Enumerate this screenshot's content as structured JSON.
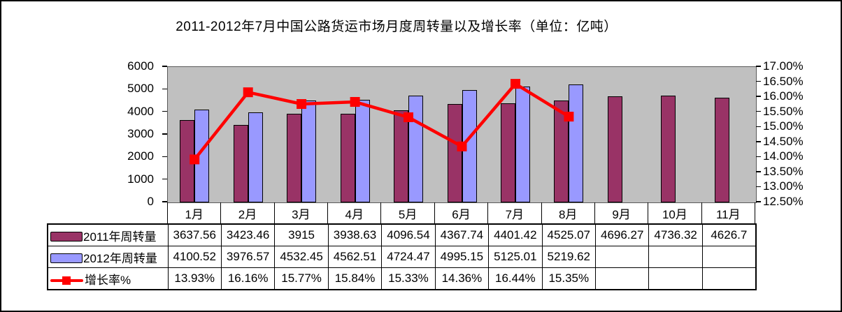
{
  "title": "2011-2012年7月中国公路货运市场月度周转量以及增长率（单位：亿吨）",
  "colors": {
    "bar_2011": "#993366",
    "bar_2012": "#9999FF",
    "growth_line": "#FF0000",
    "plot_background": "#C0C0C0",
    "text": "#000000"
  },
  "chart_data": {
    "type": "bar+line",
    "title": "2011-2012年7月中国公路货运市场月度周转量以及增长率（单位：亿吨）",
    "categories": [
      "1月",
      "2月",
      "3月",
      "4月",
      "5月",
      "6月",
      "7月",
      "8月",
      "9月",
      "10月",
      "11月"
    ],
    "series": [
      {
        "name": "2011年周转量",
        "type": "bar",
        "axis": "left",
        "color": "#993366",
        "values": [
          3637.56,
          3423.46,
          3915,
          3938.63,
          4096.54,
          4367.74,
          4401.42,
          4525.07,
          4696.27,
          4736.32,
          4626.7
        ]
      },
      {
        "name": "2012年周转量",
        "type": "bar",
        "axis": "left",
        "color": "#9999FF",
        "values": [
          4100.52,
          3976.57,
          4532.45,
          4562.51,
          4724.47,
          4995.15,
          5125.01,
          5219.62,
          null,
          null,
          null
        ]
      },
      {
        "name": "增长率%",
        "type": "line",
        "axis": "right",
        "color": "#FF0000",
        "values": [
          13.93,
          16.16,
          15.77,
          15.84,
          15.33,
          14.36,
          16.44,
          15.35,
          null,
          null,
          null
        ]
      }
    ],
    "left_axis": {
      "min": 0,
      "max": 6000,
      "step": 1000,
      "ticks": [
        "6000",
        "5000",
        "4000",
        "3000",
        "2000",
        "1000",
        "0"
      ]
    },
    "right_axis": {
      "min": 12.5,
      "max": 17,
      "step": 0.5,
      "ticks": [
        "17.00%",
        "16.50%",
        "16.00%",
        "15.50%",
        "15.00%",
        "14.50%",
        "14.00%",
        "13.50%",
        "13.00%",
        "12.50%"
      ]
    },
    "grid": false,
    "legend_position": "table-left"
  },
  "table": {
    "rows": [
      {
        "label": "2011年周转量",
        "swatch": "bar",
        "cells": [
          "3637.56",
          "3423.46",
          "3915",
          "3938.63",
          "4096.54",
          "4367.74",
          "4401.42",
          "4525.07",
          "4696.27",
          "4736.32",
          "4626.7"
        ]
      },
      {
        "label": "2012年周转量",
        "swatch": "bar",
        "cells": [
          "4100.52",
          "3976.57",
          "4532.45",
          "4562.51",
          "4724.47",
          "4995.15",
          "5125.01",
          "5219.62",
          "",
          "",
          ""
        ]
      },
      {
        "label": "增长率%",
        "swatch": "line",
        "cells": [
          "13.93%",
          "16.16%",
          "15.77%",
          "15.84%",
          "15.33%",
          "14.36%",
          "16.44%",
          "15.35%",
          "",
          "",
          ""
        ]
      }
    ]
  }
}
